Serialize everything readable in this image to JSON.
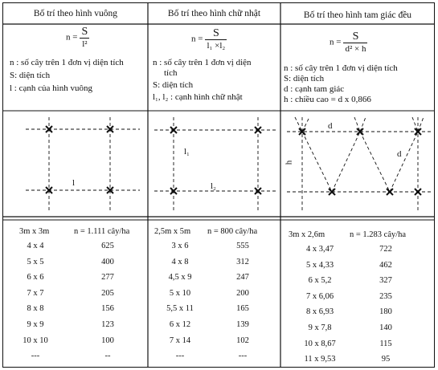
{
  "square": {
    "header": "Bố trí theo hình vuông",
    "formula": {
      "lhs": "n =",
      "num": "S",
      "den": "l²"
    },
    "legend": [
      "n : số cây trên 1 đơn vị diện tích",
      "S: diện tích",
      "l : cạnh của hình vuông"
    ],
    "diagram_label": "l",
    "table": {
      "head_left": "3m x 3m",
      "head_right": "n = 1.111 cây/ha",
      "rows": [
        [
          "4 x 4",
          "625"
        ],
        [
          "5 x 5",
          "400"
        ],
        [
          "6 x 6",
          "277"
        ],
        [
          "7 x 7",
          "205"
        ],
        [
          "8 x 8",
          "156"
        ],
        [
          "9 x 9",
          "123"
        ],
        [
          "10 x 10",
          "100"
        ],
        [
          "---",
          "--"
        ]
      ]
    }
  },
  "rectangle": {
    "header": "Bố trí theo hình chữ nhật",
    "formula": {
      "lhs": "n =",
      "num": "S",
      "den": "l₁ ×l₂"
    },
    "legend": [
      "n : số cây trên 1 đơn vị diện",
      "tích",
      "S: diện tích",
      "l₁, l₂ : cạnh hình chữ nhật"
    ],
    "diagram_labels": [
      "l₁",
      "l₂"
    ],
    "table": {
      "head_left": "2,5m x 5m",
      "head_right": "n = 800 cây/ha",
      "rows": [
        [
          "3 x 6",
          "555"
        ],
        [
          "4 x 8",
          "312"
        ],
        [
          "4,5 x 9",
          "247"
        ],
        [
          "5 x 10",
          "200"
        ],
        [
          "5,5 x 11",
          "165"
        ],
        [
          "6 x 12",
          "139"
        ],
        [
          "7 x 14",
          "102"
        ],
        [
          "---",
          "---"
        ]
      ]
    }
  },
  "triangle": {
    "header": "Bố trí theo hình tam giác đều",
    "formula": {
      "lhs": "n =",
      "num": "S",
      "den": "d² × h"
    },
    "legend": [
      "n : số cây trên 1 đơn vị diện tích",
      "S: diện tích",
      "d : cạnh tam giác",
      "h : chiều cao = d x 0,866"
    ],
    "diagram_labels": [
      "d",
      "d",
      "h"
    ],
    "table": {
      "head_left": "3m x 2,6m",
      "head_right": "n = 1.283 cây/ha",
      "rows": [
        [
          "4 x 3,47",
          "722"
        ],
        [
          "5 x 4,33",
          "462"
        ],
        [
          "6 x 5,2",
          "327"
        ],
        [
          "7 x 6,06",
          "235"
        ],
        [
          "8 x 6,93",
          "180"
        ],
        [
          "9 x 7,8",
          "140"
        ],
        [
          "10 x 8,67",
          "115"
        ],
        [
          "11 x 9,53",
          "95"
        ]
      ]
    }
  }
}
